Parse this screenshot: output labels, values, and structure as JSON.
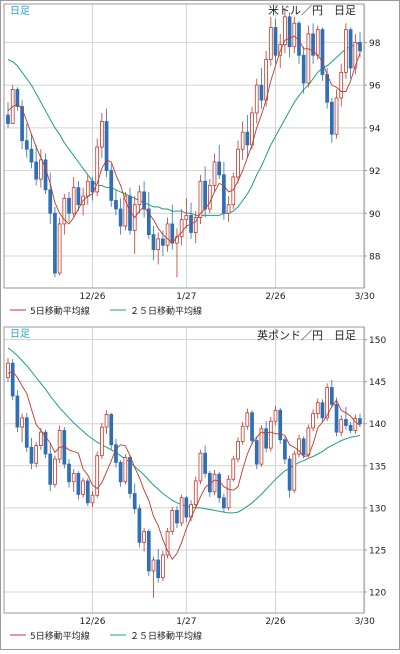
{
  "colors": {
    "up": "#c0392b",
    "down": "#2f6fb5",
    "ma5": "#c0392b",
    "ma25": "#1aa37a",
    "frame": "#9a9a9a",
    "grid": "#d4d4d4",
    "badge": "#2aa0d6",
    "text": "#222222"
  },
  "chart_data": [
    {
      "type": "candlestick",
      "title": "米ドル／円　日足",
      "badge": "日足",
      "ylim": [
        86.5,
        99.8
      ],
      "yticks": [
        88,
        90,
        92,
        94,
        96,
        98
      ],
      "xticks": [
        "12/26",
        "1/27",
        "2/26",
        "3/30"
      ],
      "xtick_index": [
        18,
        38,
        57,
        76
      ],
      "legend": [
        "5日移動平均線",
        "２５日移動平均線"
      ],
      "ohlc": [
        [
          94.6,
          95.2,
          94.0,
          94.2
        ],
        [
          94.2,
          96.0,
          94.3,
          95.8
        ],
        [
          95.8,
          95.9,
          94.8,
          95.0
        ],
        [
          95.0,
          95.3,
          93.0,
          93.4
        ],
        [
          93.4,
          94.2,
          92.6,
          93.0
        ],
        [
          93.0,
          93.7,
          92.1,
          92.4
        ],
        [
          92.4,
          93.2,
          91.3,
          91.6
        ],
        [
          91.6,
          93.0,
          91.2,
          92.5
        ],
        [
          92.5,
          92.8,
          90.9,
          91.1
        ],
        [
          91.1,
          91.9,
          89.5,
          90.0
        ],
        [
          90.0,
          90.3,
          87.0,
          87.2
        ],
        [
          87.2,
          89.8,
          87.1,
          89.5
        ],
        [
          89.5,
          90.9,
          89.0,
          90.7
        ],
        [
          90.7,
          91.0,
          89.6,
          90.0
        ],
        [
          90.0,
          91.7,
          89.8,
          91.2
        ],
        [
          91.2,
          91.5,
          90.1,
          90.4
        ],
        [
          90.4,
          91.2,
          89.9,
          90.8
        ],
        [
          90.8,
          91.8,
          90.4,
          91.5
        ],
        [
          91.5,
          91.7,
          90.6,
          91.0
        ],
        [
          91.0,
          93.5,
          90.8,
          93.1
        ],
        [
          93.1,
          94.7,
          92.6,
          94.3
        ],
        [
          94.3,
          94.9,
          91.7,
          92.0
        ],
        [
          92.0,
          92.3,
          90.3,
          90.6
        ],
        [
          90.6,
          91.1,
          89.9,
          90.2
        ],
        [
          90.2,
          90.7,
          89.0,
          89.4
        ],
        [
          89.4,
          91.0,
          89.2,
          90.8
        ],
        [
          90.8,
          91.2,
          89.0,
          89.2
        ],
        [
          89.2,
          90.8,
          88.1,
          90.4
        ],
        [
          90.4,
          91.3,
          90.0,
          91.0
        ],
        [
          91.0,
          91.5,
          89.8,
          90.2
        ],
        [
          90.2,
          91.0,
          88.8,
          89.0
        ],
        [
          89.0,
          89.4,
          87.8,
          88.3
        ],
        [
          88.3,
          89.1,
          87.6,
          88.8
        ],
        [
          88.8,
          89.2,
          88.0,
          88.5
        ],
        [
          88.5,
          89.8,
          88.2,
          89.5
        ],
        [
          89.5,
          90.4,
          88.3,
          88.6
        ],
        [
          88.6,
          89.3,
          87.0,
          88.9
        ],
        [
          88.9,
          90.2,
          88.5,
          89.7
        ],
        [
          89.7,
          90.7,
          89.3,
          89.9
        ],
        [
          89.9,
          90.5,
          88.8,
          89.1
        ],
        [
          89.1,
          90.1,
          88.6,
          89.8
        ],
        [
          89.8,
          91.8,
          89.5,
          91.5
        ],
        [
          91.5,
          92.2,
          89.8,
          90.2
        ],
        [
          90.2,
          91.6,
          90.0,
          91.3
        ],
        [
          91.3,
          92.8,
          91.0,
          92.4
        ],
        [
          92.4,
          93.2,
          91.6,
          91.8
        ],
        [
          91.8,
          92.4,
          89.7,
          90.0
        ],
        [
          90.0,
          90.8,
          89.6,
          90.4
        ],
        [
          90.4,
          91.9,
          90.2,
          91.7
        ],
        [
          91.7,
          93.4,
          91.4,
          93.0
        ],
        [
          93.0,
          94.3,
          92.5,
          93.8
        ],
        [
          93.8,
          94.6,
          92.6,
          93.2
        ],
        [
          93.2,
          95.0,
          93.0,
          94.7
        ],
        [
          94.7,
          96.3,
          94.2,
          96.0
        ],
        [
          96.0,
          96.8,
          94.9,
          95.3
        ],
        [
          95.3,
          97.6,
          95.0,
          97.2
        ],
        [
          97.2,
          99.2,
          96.9,
          98.7
        ],
        [
          98.7,
          99.1,
          97.0,
          97.4
        ],
        [
          97.4,
          98.4,
          96.8,
          97.9
        ],
        [
          97.9,
          99.6,
          97.5,
          99.2
        ],
        [
          99.2,
          99.4,
          97.3,
          97.8
        ],
        [
          97.8,
          99.2,
          97.5,
          98.9
        ],
        [
          98.9,
          99.0,
          97.0,
          97.4
        ],
        [
          97.4,
          97.8,
          95.6,
          96.1
        ],
        [
          96.1,
          98.8,
          95.9,
          98.4
        ],
        [
          98.4,
          98.9,
          97.0,
          97.4
        ],
        [
          97.4,
          98.8,
          97.2,
          98.6
        ],
        [
          98.6,
          98.7,
          96.2,
          96.5
        ],
        [
          96.5,
          96.8,
          94.9,
          95.2
        ],
        [
          95.2,
          95.4,
          93.3,
          93.7
        ],
        [
          93.7,
          95.8,
          93.5,
          95.4
        ],
        [
          95.4,
          97.0,
          95.0,
          96.6
        ],
        [
          96.6,
          98.9,
          96.3,
          98.6
        ],
        [
          98.6,
          98.7,
          96.3,
          96.8
        ],
        [
          96.8,
          98.4,
          96.5,
          98.0
        ],
        [
          98.0,
          98.5,
          97.3,
          97.6
        ]
      ],
      "ma5": [
        94.8,
        95.0,
        95.1,
        94.9,
        94.3,
        93.7,
        93.1,
        92.6,
        92.1,
        91.4,
        90.5,
        90.0,
        89.7,
        89.5,
        89.8,
        90.2,
        90.6,
        90.8,
        90.9,
        91.4,
        92.1,
        92.5,
        92.4,
        91.8,
        91.3,
        90.6,
        90.1,
        89.8,
        90.1,
        90.3,
        90.0,
        89.7,
        89.3,
        89.0,
        88.8,
        88.6,
        88.9,
        89.1,
        89.4,
        89.5,
        89.6,
        90.0,
        90.2,
        90.5,
        91.0,
        91.4,
        91.3,
        91.0,
        91.1,
        91.5,
        92.0,
        92.6,
        93.2,
        94.0,
        94.6,
        95.3,
        96.2,
        96.9,
        97.6,
        98.1,
        98.2,
        98.3,
        98.1,
        97.7,
        97.7,
        97.6,
        97.4,
        97.1,
        96.5,
        96.0,
        95.9,
        95.7,
        95.7,
        96.2,
        96.9,
        97.5
      ],
      "ma25": [
        97.2,
        97.1,
        96.9,
        96.6,
        96.3,
        96.0,
        95.6,
        95.2,
        94.8,
        94.4,
        94.0,
        93.7,
        93.3,
        93.0,
        92.7,
        92.4,
        92.1,
        91.8,
        91.5,
        91.3,
        91.3,
        91.2,
        91.2,
        91.1,
        91.0,
        90.9,
        90.8,
        90.7,
        90.6,
        90.5,
        90.4,
        90.3,
        90.3,
        90.2,
        90.2,
        90.1,
        90.1,
        90.1,
        90.0,
        90.0,
        89.9,
        89.9,
        89.9,
        89.9,
        89.9,
        89.9,
        90.0,
        90.0,
        90.1,
        90.3,
        90.6,
        90.9,
        91.3,
        91.8,
        92.2,
        92.7,
        93.2,
        93.6,
        94.0,
        94.4,
        94.8,
        95.2,
        95.5,
        95.8,
        96.0,
        96.3,
        96.6,
        96.8,
        96.9,
        97.1,
        97.3,
        97.5,
        97.7,
        97.8,
        97.9,
        98.0
      ]
    },
    {
      "type": "candlestick",
      "title": "英ポンド／円　日足",
      "badge": "日足",
      "ylim": [
        117.5,
        151.5
      ],
      "yticks": [
        120,
        125,
        130,
        135,
        140,
        145,
        150
      ],
      "xticks": [
        "12/26",
        "1/27",
        "2/26",
        "3/30"
      ],
      "xtick_index": [
        18,
        38,
        57,
        76
      ],
      "legend": [
        "5日移動平均線",
        "２５日移動平均線"
      ],
      "ohlc": [
        [
          145.5,
          147.8,
          145.0,
          147.2
        ],
        [
          147.2,
          147.7,
          142.8,
          143.3
        ],
        [
          143.3,
          144.0,
          139.0,
          139.6
        ],
        [
          139.6,
          141.2,
          137.8,
          140.7
        ],
        [
          140.7,
          141.3,
          136.6,
          137.2
        ],
        [
          137.2,
          138.3,
          134.6,
          135.3
        ],
        [
          135.3,
          137.8,
          134.8,
          137.4
        ],
        [
          137.4,
          139.5,
          136.9,
          139.0
        ],
        [
          139.0,
          139.3,
          135.9,
          136.4
        ],
        [
          136.4,
          137.7,
          132.0,
          132.8
        ],
        [
          132.8,
          136.2,
          132.4,
          135.8
        ],
        [
          135.8,
          139.8,
          135.3,
          139.2
        ],
        [
          139.2,
          139.6,
          134.7,
          135.2
        ],
        [
          135.2,
          135.8,
          132.4,
          133.1
        ],
        [
          133.1,
          134.6,
          131.9,
          134.1
        ],
        [
          134.1,
          134.4,
          131.0,
          131.6
        ],
        [
          131.6,
          133.6,
          131.2,
          133.2
        ],
        [
          133.2,
          133.5,
          130.2,
          130.6
        ],
        [
          130.6,
          132.0,
          130.1,
          131.5
        ],
        [
          131.5,
          136.7,
          131.2,
          136.2
        ],
        [
          136.2,
          140.1,
          135.8,
          139.6
        ],
        [
          139.6,
          141.6,
          138.8,
          141.1
        ],
        [
          141.1,
          141.3,
          136.9,
          137.5
        ],
        [
          137.5,
          138.2,
          134.8,
          135.4
        ],
        [
          135.4,
          135.7,
          132.5,
          133.1
        ],
        [
          133.1,
          136.4,
          132.8,
          136.0
        ],
        [
          136.0,
          136.3,
          131.1,
          131.7
        ],
        [
          131.7,
          132.9,
          129.3,
          129.9
        ],
        [
          129.9,
          130.4,
          125.3,
          125.9
        ],
        [
          125.9,
          127.6,
          124.8,
          127.2
        ],
        [
          127.2,
          127.5,
          121.9,
          122.5
        ],
        [
          122.5,
          124.2,
          119.3,
          123.8
        ],
        [
          123.8,
          125.1,
          121.1,
          121.7
        ],
        [
          121.7,
          124.9,
          121.3,
          124.4
        ],
        [
          124.4,
          127.6,
          124.0,
          127.2
        ],
        [
          127.2,
          130.1,
          126.8,
          129.7
        ],
        [
          129.7,
          130.2,
          127.6,
          128.2
        ],
        [
          128.2,
          131.6,
          127.8,
          131.2
        ],
        [
          131.2,
          131.4,
          128.3,
          128.9
        ],
        [
          128.9,
          130.9,
          128.4,
          130.4
        ],
        [
          130.4,
          133.7,
          130.1,
          133.2
        ],
        [
          133.2,
          136.9,
          132.8,
          136.5
        ],
        [
          136.5,
          137.4,
          133.6,
          134.1
        ],
        [
          134.1,
          134.4,
          131.3,
          131.9
        ],
        [
          131.9,
          134.5,
          131.5,
          134.0
        ],
        [
          134.0,
          134.3,
          130.6,
          131.2
        ],
        [
          131.2,
          131.7,
          129.5,
          130.0
        ],
        [
          130.0,
          133.9,
          129.7,
          133.4
        ],
        [
          133.4,
          136.2,
          133.1,
          135.8
        ],
        [
          135.8,
          138.4,
          135.4,
          137.9
        ],
        [
          137.9,
          140.2,
          137.5,
          139.7
        ],
        [
          139.7,
          141.8,
          139.3,
          141.3
        ],
        [
          141.3,
          141.6,
          137.5,
          138.0
        ],
        [
          138.0,
          138.5,
          134.6,
          135.2
        ],
        [
          135.2,
          139.8,
          134.9,
          139.4
        ],
        [
          139.4,
          140.3,
          136.6,
          137.1
        ],
        [
          137.1,
          140.8,
          136.7,
          140.3
        ],
        [
          140.3,
          142.1,
          139.8,
          141.6
        ],
        [
          141.6,
          141.9,
          137.6,
          138.1
        ],
        [
          138.1,
          138.4,
          135.2,
          135.8
        ],
        [
          135.8,
          136.2,
          131.2,
          132.1
        ],
        [
          132.1,
          136.8,
          131.8,
          136.4
        ],
        [
          136.4,
          138.7,
          136.0,
          138.2
        ],
        [
          138.2,
          138.5,
          135.9,
          136.3
        ],
        [
          136.3,
          139.9,
          136.0,
          139.5
        ],
        [
          139.5,
          141.7,
          139.1,
          141.2
        ],
        [
          141.2,
          143.0,
          140.6,
          142.5
        ],
        [
          142.5,
          142.9,
          140.2,
          140.7
        ],
        [
          140.7,
          144.8,
          140.3,
          144.3
        ],
        [
          144.3,
          145.2,
          141.9,
          142.3
        ],
        [
          142.3,
          143.1,
          138.5,
          139.0
        ],
        [
          139.0,
          141.0,
          138.5,
          140.5
        ],
        [
          140.5,
          142.0,
          139.3,
          139.8
        ],
        [
          139.8,
          140.2,
          138.9,
          139.2
        ],
        [
          139.2,
          141.1,
          138.8,
          140.6
        ],
        [
          140.6,
          141.2,
          139.6,
          140.0
        ]
      ],
      "ma5": [
        146.0,
        146.2,
        145.5,
        144.5,
        143.6,
        141.7,
        139.9,
        139.2,
        138.5,
        137.7,
        136.6,
        137.2,
        137.3,
        136.9,
        136.7,
        136.5,
        134.6,
        133.9,
        132.7,
        132.3,
        133.0,
        134.3,
        135.6,
        137.0,
        137.5,
        137.4,
        136.2,
        134.8,
        133.6,
        132.1,
        130.9,
        129.0,
        127.9,
        126.2,
        124.9,
        123.9,
        124.6,
        125.9,
        127.5,
        128.9,
        130.0,
        131.3,
        132.4,
        132.9,
        133.3,
        133.2,
        132.5,
        132.2,
        132.1,
        132.5,
        134.6,
        136.4,
        137.7,
        138.4,
        139.0,
        138.9,
        139.0,
        138.8,
        138.8,
        138.6,
        137.5,
        137.2,
        136.8,
        136.1,
        136.2,
        137.6,
        139.5,
        140.2,
        141.0,
        142.0,
        142.8,
        141.6,
        141.3,
        140.9,
        140.2,
        139.8
      ],
      "ma25": [
        149.0,
        148.6,
        148.1,
        147.5,
        146.9,
        146.2,
        145.5,
        144.8,
        144.1,
        143.3,
        142.6,
        141.9,
        141.3,
        140.7,
        140.1,
        139.6,
        139.1,
        138.6,
        138.2,
        137.8,
        137.5,
        137.2,
        136.9,
        136.6,
        136.2,
        135.8,
        135.4,
        134.9,
        134.4,
        133.9,
        133.3,
        132.7,
        132.2,
        131.7,
        131.3,
        130.9,
        130.6,
        130.4,
        130.2,
        130.1,
        130.0,
        130.0,
        129.9,
        129.8,
        129.7,
        129.6,
        129.5,
        129.4,
        129.4,
        129.5,
        129.8,
        130.2,
        130.6,
        131.1,
        131.6,
        132.2,
        132.8,
        133.4,
        133.9,
        134.4,
        134.7,
        135.1,
        135.4,
        135.6,
        135.9,
        136.1,
        136.4,
        136.7,
        137.1,
        137.4,
        137.7,
        138.0,
        138.2,
        138.4,
        138.5,
        138.6
      ]
    }
  ]
}
